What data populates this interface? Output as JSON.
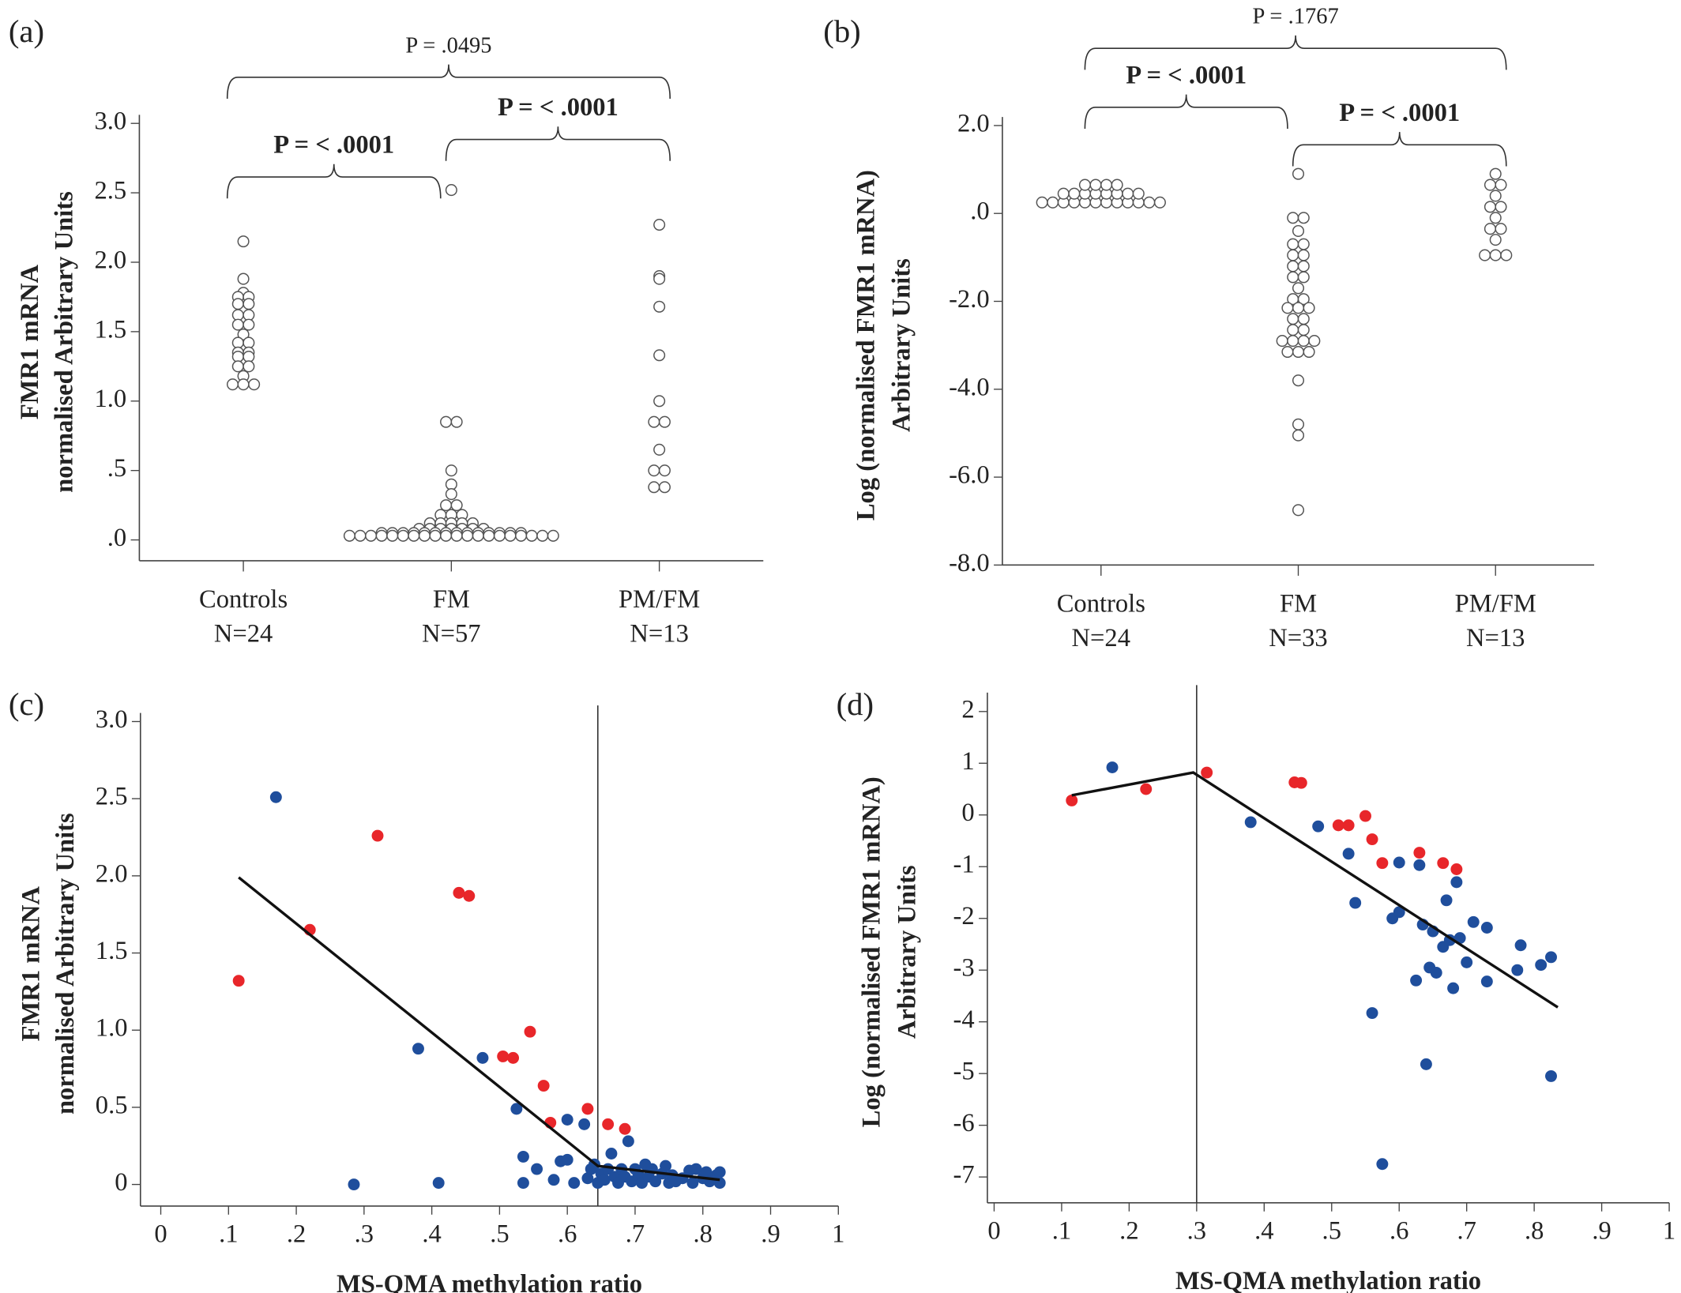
{
  "chart_data": [
    {
      "type": "strip",
      "panel_label": "(a)",
      "ylabel": [
        "FMR1 mRNA",
        "normalised Arbitrary Units"
      ],
      "categories": [
        "Controls",
        "FM",
        "PM/FM"
      ],
      "group_sizes": [
        "N=24",
        "N=57",
        "N=13"
      ],
      "values": [
        [
          2.15,
          1.88,
          1.78,
          1.75,
          1.75,
          1.7,
          1.7,
          1.62,
          1.62,
          1.55,
          1.55,
          1.48,
          1.42,
          1.42,
          1.35,
          1.35,
          1.32,
          1.32,
          1.25,
          1.25,
          1.18,
          1.12,
          1.12,
          1.12
        ],
        [
          2.52,
          0.85,
          0.85,
          0.5,
          0.4,
          0.33,
          0.25,
          0.25,
          0.18,
          0.18,
          0.18,
          0.12,
          0.12,
          0.12,
          0.12,
          0.12,
          0.08,
          0.08,
          0.08,
          0.08,
          0.08,
          0.08,
          0.08,
          0.05,
          0.05,
          0.05,
          0.05,
          0.05,
          0.05,
          0.05,
          0.05,
          0.05,
          0.05,
          0.05,
          0.05,
          0.05,
          0.05,
          0.03,
          0.03,
          0.03,
          0.03,
          0.03,
          0.03,
          0.03,
          0.03,
          0.03,
          0.03,
          0.03,
          0.03,
          0.03,
          0.03,
          0.03,
          0.03,
          0.03,
          0.03,
          0.03,
          0.03
        ],
        [
          2.27,
          1.9,
          1.88,
          1.68,
          1.33,
          1.0,
          0.85,
          0.85,
          0.65,
          0.5,
          0.5,
          0.38,
          0.38
        ]
      ],
      "ylim": [
        -0.15,
        3.0
      ],
      "yticks": [
        {
          "value": 0,
          "label": ".0"
        },
        {
          "value": 0.5,
          "label": ".5"
        },
        {
          "value": 1,
          "label": "1.0"
        },
        1.5,
        {
          "value": 2,
          "label": "2.0"
        },
        2.5,
        {
          "value": 3,
          "label": "3.0"
        }
      ],
      "brackets": [
        {
          "label": "P = < .0001",
          "from": 0,
          "to": 1,
          "bold": true
        },
        {
          "label": "P = < .0001",
          "from": 1,
          "to": 2,
          "bold": true
        },
        {
          "label": "P = .0495",
          "from": 0,
          "to": 2,
          "bold": false
        }
      ]
    },
    {
      "type": "strip",
      "panel_label": "(b)",
      "ylabel": [
        "Log (normalised FMR1 mRNA)",
        "Arbitrary Units"
      ],
      "categories": [
        "Controls",
        "FM",
        "PM/FM"
      ],
      "group_sizes": [
        "N=24",
        "N=33",
        "N=13"
      ],
      "values": [
        [
          0.25,
          0.25,
          0.25,
          0.25,
          0.25,
          0.25,
          0.25,
          0.25,
          0.25,
          0.25,
          0.25,
          0.25,
          0.45,
          0.45,
          0.45,
          0.45,
          0.45,
          0.45,
          0.45,
          0.45,
          0.65,
          0.65,
          0.65,
          0.65
        ],
        [
          0.9,
          -0.1,
          -0.1,
          -0.4,
          -0.7,
          -0.7,
          -0.95,
          -0.95,
          -1.2,
          -1.2,
          -1.45,
          -1.45,
          -1.7,
          -1.95,
          -1.95,
          -2.15,
          -2.15,
          -2.15,
          -2.4,
          -2.4,
          -2.65,
          -2.65,
          -2.9,
          -2.9,
          -2.9,
          -2.9,
          -3.15,
          -3.15,
          -3.15,
          -3.8,
          -4.8,
          -5.05,
          -6.75
        ],
        [
          0.9,
          0.65,
          0.65,
          0.4,
          0.15,
          0.15,
          -0.1,
          -0.35,
          -0.35,
          -0.6,
          -0.95,
          -0.95,
          -0.95
        ]
      ],
      "ylim": [
        -8,
        2
      ],
      "yticks": [
        {
          "value": 2,
          "label": "2.0"
        },
        {
          "value": 0,
          "label": ".0"
        },
        {
          "value": -2,
          "label": "-2.0"
        },
        {
          "value": -4,
          "label": "-4.0"
        },
        {
          "value": -6,
          "label": "-6.0"
        },
        {
          "value": -8,
          "label": "-8.0"
        }
      ],
      "brackets": [
        {
          "label": "P = .1767",
          "from": 0,
          "to": 2,
          "bold": false
        },
        {
          "label": "P = < .0001",
          "from": 0,
          "to": 1,
          "bold": true
        },
        {
          "label": "P = < .0001",
          "from": 1,
          "to": 2,
          "bold": true
        }
      ]
    },
    {
      "type": "scatter",
      "panel_label": "(c)",
      "ylabel": [
        "FMR1 mRNA",
        "normalised Arbitrary Units"
      ],
      "xlabel": "MS-QMA methylation ratio",
      "series": [
        {
          "color": "#e8262a",
          "x": [
            0.115,
            0.22,
            0.32,
            0.44,
            0.455,
            0.505,
            0.52,
            0.545,
            0.565,
            0.575,
            0.63,
            0.66,
            0.685
          ],
          "values": [
            1.32,
            1.65,
            2.26,
            1.89,
            1.87,
            0.83,
            0.82,
            0.99,
            0.64,
            0.4,
            0.49,
            0.39,
            0.36
          ]
        },
        {
          "color": "#1f4e9c",
          "x": [
            0.17,
            0.285,
            0.38,
            0.41,
            0.475,
            0.525,
            0.535,
            0.535,
            0.555,
            0.58,
            0.59,
            0.6,
            0.6,
            0.61,
            0.625,
            0.63,
            0.635,
            0.64,
            0.645,
            0.65,
            0.655,
            0.66,
            0.665,
            0.67,
            0.675,
            0.68,
            0.685,
            0.69,
            0.695,
            0.7,
            0.705,
            0.71,
            0.715,
            0.72,
            0.725,
            0.73,
            0.74,
            0.745,
            0.75,
            0.755,
            0.76,
            0.77,
            0.78,
            0.785,
            0.79,
            0.8,
            0.805,
            0.81,
            0.82,
            0.825,
            0.825
          ],
          "values": [
            2.51,
            0,
            0.88,
            0.01,
            0.82,
            0.49,
            0.18,
            0.01,
            0.1,
            0.03,
            0.15,
            0.16,
            0.42,
            0.01,
            0.39,
            0.04,
            0.1,
            0.13,
            0.01,
            0.07,
            0.03,
            0.1,
            0.2,
            0.05,
            0.01,
            0.1,
            0.05,
            0.28,
            0.02,
            0.1,
            0.06,
            0.01,
            0.13,
            0.05,
            0.1,
            0.02,
            0.07,
            0.12,
            0.01,
            0.06,
            0.02,
            0.04,
            0.09,
            0.01,
            0.1,
            0.04,
            0.08,
            0.02,
            0.06,
            0.01,
            0.08
          ]
        }
      ],
      "fit_x": [
        0.115,
        0.645,
        0.825
      ],
      "fit_y": [
        1.99,
        0.12,
        0.03
      ],
      "vline": 0.645,
      "xlim": [
        -0.03,
        1
      ],
      "ylim": [
        -0.14,
        3
      ],
      "xticks": [
        0,
        {
          "value": 0.1,
          "label": ".1"
        },
        {
          "value": 0.2,
          "label": ".2"
        },
        {
          "value": 0.3,
          "label": ".3"
        },
        {
          "value": 0.4,
          "label": ".4"
        },
        {
          "value": 0.5,
          "label": ".5"
        },
        {
          "value": 0.6,
          "label": ".6"
        },
        {
          "value": 0.7,
          "label": ".7"
        },
        {
          "value": 0.8,
          "label": ".8"
        },
        {
          "value": 0.9,
          "label": ".9"
        },
        1
      ],
      "yticks": [
        0,
        0.5,
        {
          "value": 1,
          "label": "1.0"
        },
        1.5,
        {
          "value": 2,
          "label": "2.0"
        },
        2.5,
        {
          "value": 3,
          "label": "3.0"
        }
      ]
    },
    {
      "type": "scatter",
      "panel_label": "(d)",
      "ylabel": [
        "Log (normalised FMR1 mRNA)",
        "Arbitrary Units"
      ],
      "xlabel": "MS-QMA methylation ratio",
      "series": [
        {
          "color": "#e8262a",
          "x": [
            0.115,
            0.225,
            0.315,
            0.445,
            0.455,
            0.51,
            0.525,
            0.55,
            0.56,
            0.575,
            0.63,
            0.665,
            0.685
          ],
          "values": [
            0.28,
            0.5,
            0.82,
            0.63,
            0.62,
            -0.2,
            -0.2,
            -0.02,
            -0.47,
            -0.93,
            -0.73,
            -0.93,
            -1.05
          ]
        },
        {
          "color": "#1f4e9c",
          "x": [
            0.175,
            0.38,
            0.48,
            0.525,
            0.535,
            0.56,
            0.575,
            0.59,
            0.6,
            0.6,
            0.625,
            0.63,
            0.635,
            0.64,
            0.645,
            0.65,
            0.655,
            0.665,
            0.67,
            0.675,
            0.68,
            0.685,
            0.69,
            0.7,
            0.71,
            0.73,
            0.73,
            0.775,
            0.78,
            0.81,
            0.825,
            0.825
          ],
          "values": [
            0.92,
            -0.14,
            -0.22,
            -0.75,
            -1.7,
            -3.83,
            -6.75,
            -2.0,
            -1.88,
            -0.92,
            -3.2,
            -0.97,
            -2.12,
            -4.82,
            -2.95,
            -2.25,
            -3.05,
            -2.55,
            -1.65,
            -2.42,
            -3.35,
            -1.3,
            -2.38,
            -2.85,
            -2.07,
            -2.18,
            -3.22,
            -3.0,
            -2.52,
            -2.9,
            -2.75,
            -5.05
          ]
        }
      ],
      "fit_x": [
        0.115,
        0.295,
        0.835
      ],
      "fit_y": [
        0.38,
        0.82,
        -3.72
      ],
      "vline": 0.3,
      "xlim": [
        -0.01,
        1
      ],
      "ylim": [
        -7.5,
        2.2
      ],
      "xticks": [
        0,
        {
          "value": 0.1,
          "label": ".1"
        },
        {
          "value": 0.2,
          "label": ".2"
        },
        {
          "value": 0.3,
          "label": ".3"
        },
        {
          "value": 0.4,
          "label": ".4"
        },
        {
          "value": 0.5,
          "label": ".5"
        },
        {
          "value": 0.6,
          "label": ".6"
        },
        {
          "value": 0.7,
          "label": ".7"
        },
        {
          "value": 0.8,
          "label": ".8"
        },
        {
          "value": 0.9,
          "label": ".9"
        },
        1
      ],
      "yticks": [
        2,
        1,
        0,
        -1,
        -2,
        -3,
        -4,
        -5,
        -6,
        -7
      ]
    }
  ]
}
